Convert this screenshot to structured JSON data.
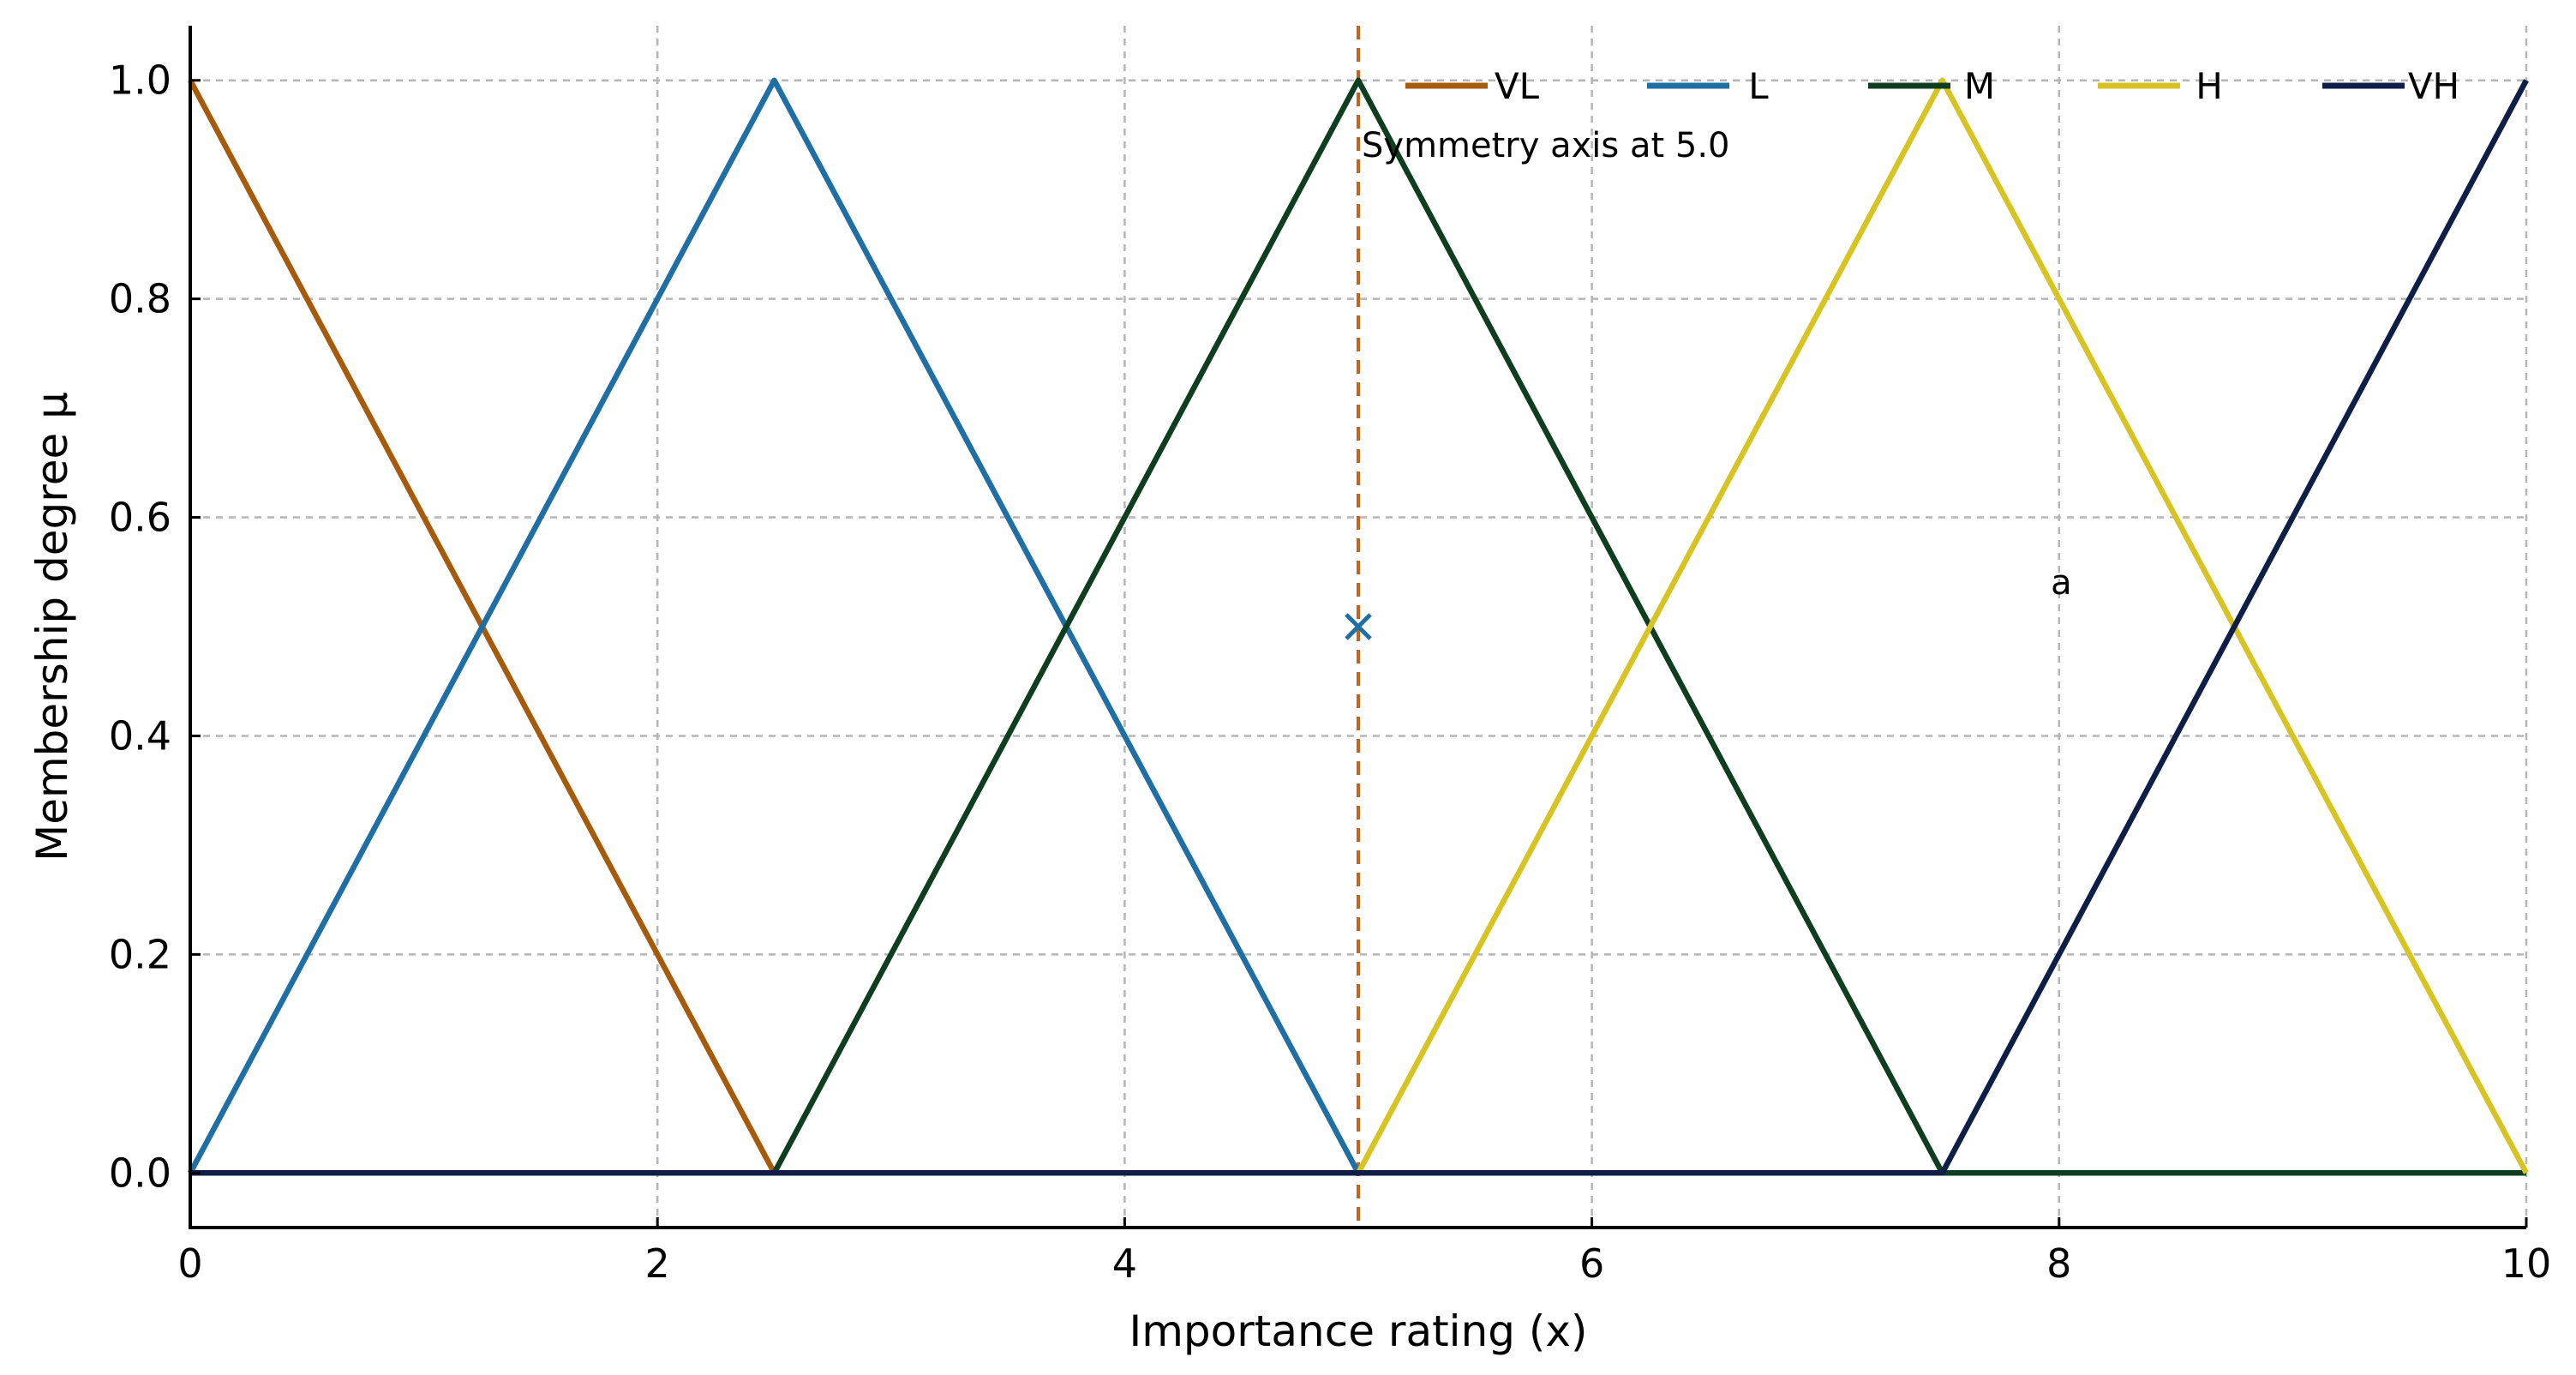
{
  "chart_data": {
    "type": "line",
    "title": "",
    "xlabel": "Importance rating (x)",
    "ylabel": "Membership degree μ",
    "xlim": [
      0,
      10
    ],
    "ylim": [
      -0.05,
      1.05
    ],
    "xticks": [
      0,
      2,
      4,
      6,
      8,
      10
    ],
    "xtick_labels": [
      "0",
      "2",
      "4",
      "6",
      "8",
      "10"
    ],
    "yticks": [
      0.0,
      0.2,
      0.4,
      0.6,
      0.8,
      1.0
    ],
    "ytick_labels": [
      "0.0",
      "0.2",
      "0.4",
      "0.6",
      "0.8",
      "1.0"
    ],
    "grid": true,
    "legend": {
      "placement": "top-right",
      "orientation": "horizontal"
    },
    "series": [
      {
        "name": "VL",
        "color": "#a65b0c",
        "x": [
          0,
          2.5,
          10
        ],
        "y": [
          1,
          0,
          0
        ]
      },
      {
        "name": "L",
        "color": "#1f6fa5",
        "x": [
          0,
          2.5,
          5,
          10
        ],
        "y": [
          0,
          1,
          0,
          0
        ]
      },
      {
        "name": "M",
        "color": "#0f3d1f",
        "x": [
          0,
          2.5,
          5,
          7.5,
          10
        ],
        "y": [
          0,
          0,
          1,
          0,
          0
        ]
      },
      {
        "name": "H",
        "color": "#d7c322",
        "x": [
          0,
          5,
          7.5,
          10
        ],
        "y": [
          0,
          0,
          1,
          0
        ]
      },
      {
        "name": "VH",
        "color": "#0e1e46",
        "x": [
          0,
          7.5,
          10
        ],
        "y": [
          0,
          0,
          1
        ]
      }
    ],
    "annotations": [
      {
        "type": "vline",
        "x": 5.0,
        "color": "#c0651a",
        "style": "dashed"
      },
      {
        "type": "text",
        "text": "Symmetry axis at 5.0",
        "x": 5.0,
        "y": 0.93
      },
      {
        "type": "marker",
        "symbol": "x",
        "x": 5.0,
        "y": 0.5,
        "color": "#1f6fa5"
      },
      {
        "type": "text",
        "text": "a",
        "x": 7.95,
        "y": 0.53
      }
    ]
  }
}
